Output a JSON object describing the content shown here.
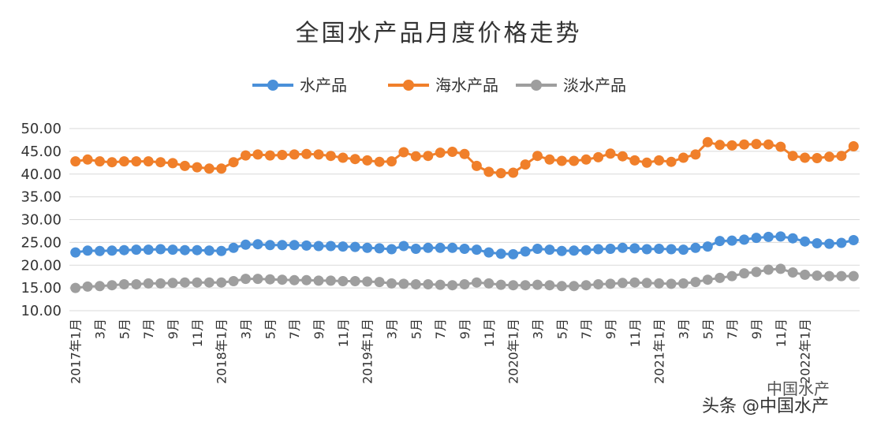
{
  "chart_data": {
    "type": "line",
    "title": "全国水产品月度价格走势",
    "xlabel": "",
    "ylabel": "",
    "ylim": [
      10,
      50
    ],
    "yticks": [
      "10.00",
      "15.00",
      "20.00",
      "25.00",
      "30.00",
      "35.00",
      "40.00",
      "45.00",
      "50.00"
    ],
    "grid": true,
    "legend_position": "top",
    "x_tick_labels": [
      "2017年1月",
      "3月",
      "5月",
      "7月",
      "9月",
      "11月",
      "2018年1月",
      "3月",
      "5月",
      "7月",
      "9月",
      "11月",
      "2019年1月",
      "3月",
      "5月",
      "7月",
      "9月",
      "11月",
      "2020年1月",
      "3月",
      "5月",
      "7月",
      "9月",
      "11月",
      "2021年1月",
      "3月",
      "5月",
      "7月",
      "9月",
      "11月",
      "2022年1月"
    ],
    "series": [
      {
        "name": "水产品",
        "color": "#4a90d9",
        "values": [
          22.8,
          23.2,
          23.1,
          23.2,
          23.3,
          23.4,
          23.4,
          23.5,
          23.4,
          23.3,
          23.3,
          23.2,
          23.1,
          23.8,
          24.5,
          24.6,
          24.4,
          24.4,
          24.4,
          24.3,
          24.2,
          24.2,
          24.1,
          24.0,
          23.8,
          23.7,
          23.5,
          24.2,
          23.6,
          23.8,
          23.8,
          23.8,
          23.6,
          23.4,
          22.8,
          22.5,
          22.4,
          23.0,
          23.6,
          23.4,
          23.1,
          23.2,
          23.3,
          23.5,
          23.6,
          23.8,
          23.7,
          23.5,
          23.6,
          23.5,
          23.4,
          23.8,
          24.1,
          25.3,
          25.4,
          25.6,
          26.0,
          26.2,
          26.3,
          25.9,
          25.2,
          24.8,
          24.7,
          24.9,
          25.5
        ]
      },
      {
        "name": "海水产品",
        "color": "#f07f2a",
        "values": [
          42.8,
          43.2,
          42.8,
          42.6,
          42.8,
          42.8,
          42.8,
          42.6,
          42.4,
          41.8,
          41.5,
          41.2,
          41.2,
          42.6,
          44.1,
          44.3,
          44.1,
          44.2,
          44.3,
          44.4,
          44.3,
          44.0,
          43.6,
          43.3,
          43.0,
          42.7,
          42.8,
          44.8,
          43.9,
          44.0,
          44.7,
          44.9,
          44.4,
          41.8,
          40.5,
          40.2,
          40.3,
          42.1,
          44.0,
          43.2,
          42.9,
          42.9,
          43.2,
          43.7,
          44.5,
          43.9,
          43.0,
          42.5,
          43.0,
          42.7,
          43.6,
          44.3,
          47.0,
          46.4,
          46.3,
          46.5,
          46.6,
          46.5,
          46.0,
          44.0,
          43.6,
          43.5,
          43.8,
          44.0,
          46.1
        ]
      },
      {
        "name": "淡水产品",
        "color": "#9e9e9e",
        "values": [
          15.0,
          15.3,
          15.4,
          15.6,
          15.8,
          15.8,
          16.0,
          16.0,
          16.1,
          16.2,
          16.2,
          16.2,
          16.2,
          16.5,
          17.0,
          17.0,
          16.9,
          16.8,
          16.7,
          16.7,
          16.6,
          16.6,
          16.5,
          16.5,
          16.4,
          16.3,
          16.0,
          15.9,
          15.8,
          15.8,
          15.7,
          15.6,
          15.8,
          16.2,
          16.0,
          15.7,
          15.6,
          15.6,
          15.7,
          15.6,
          15.4,
          15.4,
          15.6,
          15.8,
          15.9,
          16.1,
          16.2,
          16.1,
          16.0,
          15.9,
          16.0,
          16.3,
          16.8,
          17.2,
          17.6,
          18.2,
          18.5,
          19.0,
          19.2,
          18.4,
          17.9,
          17.7,
          17.6,
          17.6,
          17.6
        ]
      }
    ]
  },
  "watermark": {
    "main_text": "头条 @中国水产",
    "faint_text": "中国水产"
  }
}
